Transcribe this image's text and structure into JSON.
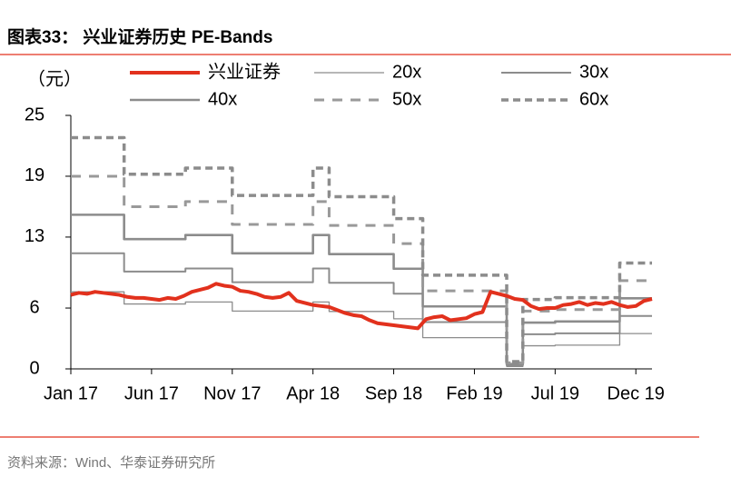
{
  "title": "图表33：  兴业证券历史 PE-Bands",
  "source": "资料来源：Wind、华泰证券研究所",
  "chart_data": {
    "type": "line",
    "y_label": "（元）",
    "xlim": [
      0,
      36
    ],
    "xticks": [
      {
        "value": 0,
        "label": "Jan 17"
      },
      {
        "value": 5,
        "label": "Jun 17"
      },
      {
        "value": 10,
        "label": "Nov 17"
      },
      {
        "value": 15,
        "label": "Apr 18"
      },
      {
        "value": 20,
        "label": "Sep 18"
      },
      {
        "value": 25,
        "label": "Feb 19"
      },
      {
        "value": 30,
        "label": "Jul 19"
      },
      {
        "value": 35,
        "label": "Dec 19"
      }
    ],
    "ylim": [
      0,
      25
    ],
    "yticks": [
      0,
      6,
      13,
      19,
      25
    ],
    "x": [
      0,
      3.3,
      3.3,
      7.1,
      7.1,
      10,
      10,
      15,
      15,
      16,
      16,
      20,
      20,
      21.8,
      21.8,
      27,
      27,
      28,
      28,
      30,
      30,
      34,
      34,
      36
    ],
    "series": [
      {
        "name": "兴业证券",
        "color": "#e2311d",
        "dashed": false,
        "x": [
          0,
          0.5,
          1,
          1.5,
          2,
          2.5,
          3,
          3.5,
          4,
          4.5,
          5,
          5.5,
          6,
          6.5,
          7,
          7.5,
          8,
          8.5,
          9,
          9.5,
          10,
          10.5,
          11,
          11.5,
          12,
          12.5,
          13,
          13.5,
          14,
          14.5,
          15,
          15.5,
          16,
          16.5,
          17,
          17.5,
          18,
          18.5,
          19,
          19.5,
          20,
          20.5,
          21,
          21.5,
          22,
          22.5,
          23,
          23.5,
          24,
          24.5,
          25,
          25.5,
          26,
          26.5,
          27,
          27.5,
          28,
          28.5,
          29,
          29.5,
          30,
          30.5,
          31,
          31.5,
          32,
          32.5,
          33,
          33.5,
          34,
          34.5,
          35,
          35.5,
          36
        ],
        "values": [
          7.3,
          7.5,
          7.4,
          7.6,
          7.5,
          7.4,
          7.3,
          7.1,
          7.0,
          7.0,
          6.9,
          6.8,
          7.0,
          6.9,
          7.2,
          7.6,
          7.8,
          8.0,
          8.4,
          8.2,
          8.1,
          7.7,
          7.6,
          7.4,
          7.1,
          7.0,
          7.1,
          7.5,
          6.7,
          6.5,
          6.3,
          6.2,
          6.1,
          5.8,
          5.5,
          5.3,
          5.2,
          4.8,
          4.5,
          4.4,
          4.3,
          4.2,
          4.1,
          4.0,
          4.9,
          5.1,
          5.2,
          4.8,
          4.9,
          5.0,
          5.4,
          5.6,
          7.6,
          7.4,
          7.2,
          6.9,
          6.8,
          6.2,
          5.9,
          6.0,
          6.0,
          6.3,
          6.4,
          6.6,
          6.3,
          6.5,
          6.4,
          6.6,
          6.3,
          6.1,
          6.2,
          6.7,
          6.9
        ]
      },
      {
        "name": "20x",
        "color": "#8c8c8c",
        "dashed": false,
        "values": [
          7.6,
          7.6,
          6.4,
          6.4,
          6.6,
          6.6,
          5.7,
          5.7,
          6.6,
          6.6,
          5.66,
          5.66,
          4.94,
          4.94,
          3.08,
          3.08,
          0.24,
          0.24,
          2.28,
          2.28,
          2.34,
          2.34,
          3.48,
          3.48
        ]
      },
      {
        "name": "30x",
        "color": "#8c8c8c",
        "dashed": false,
        "values": [
          11.4,
          11.4,
          9.6,
          9.6,
          9.9,
          9.9,
          8.55,
          8.55,
          9.9,
          9.9,
          8.49,
          8.49,
          7.41,
          7.41,
          4.62,
          4.62,
          0.36,
          0.36,
          3.42,
          3.42,
          3.51,
          3.51,
          5.22,
          5.22
        ]
      },
      {
        "name": "40x",
        "color": "#8c8c8c",
        "dashed": false,
        "values": [
          15.2,
          15.2,
          12.8,
          12.8,
          13.2,
          13.2,
          11.4,
          11.4,
          13.2,
          13.2,
          11.32,
          11.32,
          9.88,
          9.88,
          6.16,
          6.16,
          0.48,
          0.48,
          4.56,
          4.56,
          4.68,
          4.68,
          6.96,
          6.96
        ]
      },
      {
        "name": "50x",
        "color": "#999999",
        "dashed": true,
        "values": [
          19,
          19,
          16,
          16,
          16.5,
          16.5,
          14.25,
          14.25,
          16.5,
          16.5,
          14.15,
          14.15,
          12.35,
          12.35,
          7.7,
          7.7,
          0.6,
          0.6,
          5.7,
          5.7,
          5.85,
          5.85,
          8.7,
          8.7
        ]
      },
      {
        "name": "60x",
        "color": "#8c8c8c",
        "dashed": true,
        "values": [
          22.8,
          22.8,
          19.2,
          19.2,
          19.8,
          19.8,
          17.1,
          17.1,
          19.8,
          19.8,
          16.98,
          16.98,
          14.82,
          14.82,
          9.24,
          9.24,
          0.72,
          0.72,
          6.84,
          6.84,
          7.02,
          7.02,
          10.44,
          10.44
        ]
      }
    ]
  }
}
